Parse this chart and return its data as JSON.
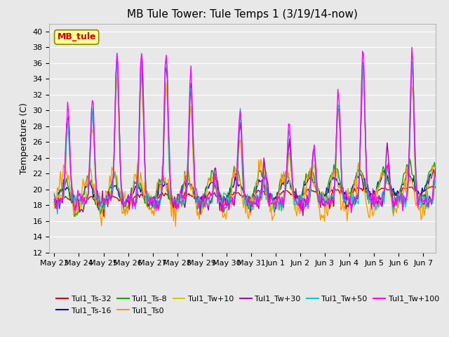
{
  "title": "MB Tule Tower: Tule Temps 1 (3/19/14-now)",
  "ylabel": "Temperature (C)",
  "ylim": [
    12,
    41
  ],
  "yticks": [
    12,
    14,
    16,
    18,
    20,
    22,
    24,
    26,
    28,
    30,
    32,
    34,
    36,
    38,
    40
  ],
  "annotation_label": "MB_tule",
  "annotation_color": "#cc0000",
  "series_labels": [
    "Tul1_Ts-32",
    "Tul1_Ts-16",
    "Tul1_Ts-8",
    "Tul1_Ts0",
    "Tul1_Tw+10",
    "Tul1_Tw+30",
    "Tul1_Tw+50",
    "Tul1_Tw+100"
  ],
  "series_colors": [
    "#cc0000",
    "#0000cc",
    "#00aa00",
    "#ff9900",
    "#cccc00",
    "#aa00aa",
    "#00cccc",
    "#ff00ff"
  ],
  "background_color": "#e8e8e8",
  "grid_color": "#ffffff",
  "xtick_labels": [
    "May 23",
    "May 24",
    "May 25",
    "May 26",
    "May 27",
    "May 28",
    "May 29",
    "May 30",
    "May 31",
    "Jun 1",
    "Jun 2",
    "Jun 3",
    "Jun 4",
    "Jun 5",
    "Jun 6",
    "Jun 7"
  ]
}
